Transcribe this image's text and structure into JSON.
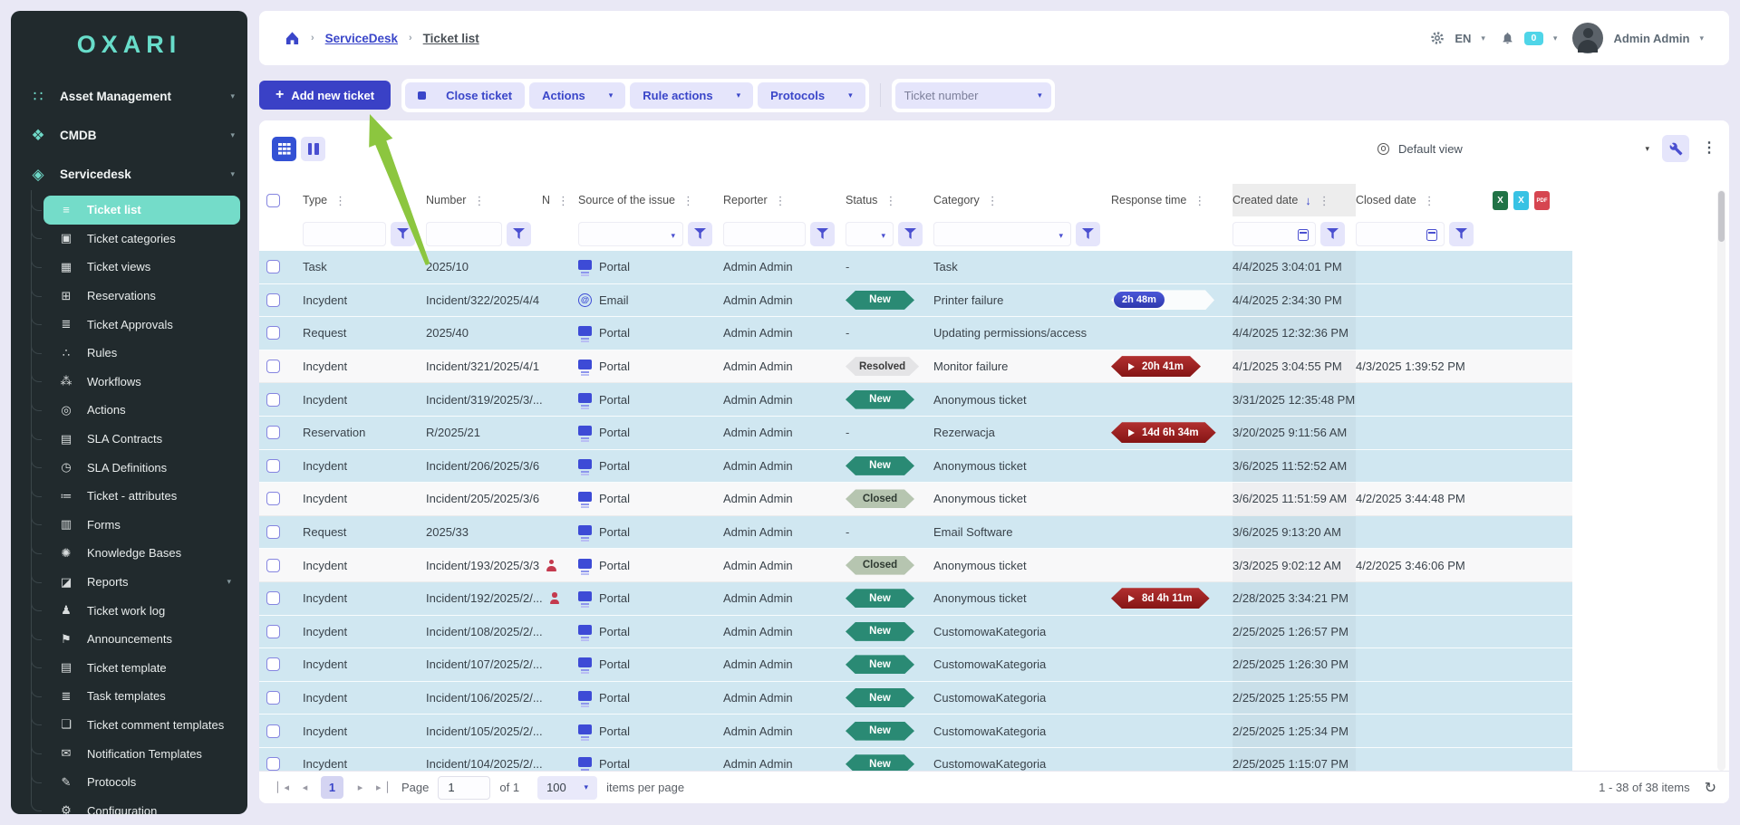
{
  "brand": {
    "logo": "OXARI"
  },
  "sidebar": {
    "sections": [
      {
        "label": "Asset Management",
        "icon": "∷",
        "name": "asset-management",
        "caret": true
      },
      {
        "label": "CMDB",
        "icon": "❖",
        "name": "cmdb",
        "caret": true
      },
      {
        "label": "Servicedesk",
        "icon": "◈",
        "name": "servicedesk",
        "caret": true
      }
    ],
    "items": [
      {
        "label": "Ticket list",
        "icon": "≡",
        "active": true
      },
      {
        "label": "Ticket categories",
        "icon": "▣"
      },
      {
        "label": "Ticket views",
        "icon": "▦"
      },
      {
        "label": "Reservations",
        "icon": "⊞"
      },
      {
        "label": "Ticket Approvals",
        "icon": "≣"
      },
      {
        "label": "Rules",
        "icon": "∴"
      },
      {
        "label": "Workflows",
        "icon": "⁂"
      },
      {
        "label": "Actions",
        "icon": "◎"
      },
      {
        "label": "SLA Contracts",
        "icon": "▤"
      },
      {
        "label": "SLA Definitions",
        "icon": "◷"
      },
      {
        "label": "Ticket - attributes",
        "icon": "≔"
      },
      {
        "label": "Forms",
        "icon": "▥"
      },
      {
        "label": "Knowledge Bases",
        "icon": "✺"
      },
      {
        "label": "Reports",
        "icon": "◪",
        "caret": true
      },
      {
        "label": "Ticket work log",
        "icon": "♟"
      },
      {
        "label": "Announcements",
        "icon": "⚑"
      },
      {
        "label": "Ticket template",
        "icon": "▤"
      },
      {
        "label": "Task templates",
        "icon": "≣"
      },
      {
        "label": "Ticket comment templates",
        "icon": "❏"
      },
      {
        "label": "Notification Templates",
        "icon": "✉"
      },
      {
        "label": "Protocols",
        "icon": "✎"
      },
      {
        "label": "Configuration",
        "icon": "⚙"
      }
    ]
  },
  "topbar": {
    "breadcrumb": [
      "ServiceDesk",
      "Ticket list"
    ],
    "language": "EN",
    "notification_count": "0",
    "user": "Admin Admin"
  },
  "toolbar": {
    "add": "Add new ticket",
    "close": "Close ticket",
    "menus": [
      "Actions",
      "Rule actions",
      "Protocols"
    ],
    "ticket_number": "Ticket number"
  },
  "viewbar": {
    "view_name": "Default view"
  },
  "table": {
    "columns": [
      {
        "label": "",
        "kind": "checkbox"
      },
      {
        "label": "Type",
        "kind": "text"
      },
      {
        "label": "Number",
        "kind": "text"
      },
      {
        "label": "N",
        "kind": "none"
      },
      {
        "label": "Source of the issue",
        "kind": "select"
      },
      {
        "label": "Reporter",
        "kind": "text"
      },
      {
        "label": "Status",
        "kind": "select-narrow"
      },
      {
        "label": "Category",
        "kind": "select"
      },
      {
        "label": "Response time",
        "kind": "none"
      },
      {
        "label": "Created date",
        "kind": "date",
        "sorted": "desc"
      },
      {
        "label": "Closed date",
        "kind": "date"
      }
    ],
    "export": [
      {
        "name": "export-excel",
        "letter": "X",
        "color": "#217346"
      },
      {
        "name": "export-excel-alt",
        "letter": "X",
        "color": "#38c2e4"
      },
      {
        "name": "export-pdf",
        "letter": "PDF",
        "color": "#d64550"
      }
    ],
    "rows": [
      {
        "type": "Task",
        "number": "2025/10",
        "anon": false,
        "source": "Portal",
        "reporter": "Admin Admin",
        "status": "-",
        "category": "Task",
        "response": null,
        "created": "4/4/2025 3:04:01 PM",
        "closed": "",
        "shade": "blue"
      },
      {
        "type": "Incydent",
        "number": "Incident/322/2025/4/4",
        "anon": false,
        "source": "Email",
        "reporter": "Admin Admin",
        "status": "New",
        "category": "Printer failure",
        "response": {
          "style": "progress",
          "label": "2h 48m"
        },
        "created": "4/4/2025 2:34:30 PM",
        "closed": "",
        "shade": "blue"
      },
      {
        "type": "Request",
        "number": "2025/40",
        "anon": false,
        "source": "Portal",
        "reporter": "Admin Admin",
        "status": "-",
        "category": "Updating permissions/access",
        "response": null,
        "created": "4/4/2025 12:32:36 PM",
        "closed": "",
        "shade": "blue"
      },
      {
        "type": "Incydent",
        "number": "Incident/321/2025/4/1",
        "anon": false,
        "source": "Portal",
        "reporter": "Admin Admin",
        "status": "Resolved",
        "category": "Monitor failure",
        "response": {
          "style": "overdue",
          "label": "20h 41m"
        },
        "created": "4/1/2025 3:04:55 PM",
        "closed": "4/3/2025 1:39:52 PM",
        "shade": "white"
      },
      {
        "type": "Incydent",
        "number": "Incident/319/2025/3/...",
        "anon": false,
        "source": "Portal",
        "reporter": "Admin Admin",
        "status": "New",
        "category": "Anonymous ticket",
        "response": null,
        "created": "3/31/2025 12:35:48 PM",
        "closed": "",
        "shade": "blue"
      },
      {
        "type": "Reservation",
        "number": "R/2025/21",
        "anon": false,
        "source": "Portal",
        "reporter": "Admin Admin",
        "status": "-",
        "category": "Rezerwacja",
        "response": {
          "style": "overdue",
          "label": "14d 6h 34m"
        },
        "created": "3/20/2025 9:11:56 AM",
        "closed": "",
        "shade": "blue"
      },
      {
        "type": "Incydent",
        "number": "Incident/206/2025/3/6",
        "anon": false,
        "source": "Portal",
        "reporter": "Admin Admin",
        "status": "New",
        "category": "Anonymous ticket",
        "response": null,
        "created": "3/6/2025 11:52:52 AM",
        "closed": "",
        "shade": "blue"
      },
      {
        "type": "Incydent",
        "number": "Incident/205/2025/3/6",
        "anon": false,
        "source": "Portal",
        "reporter": "Admin Admin",
        "status": "Closed",
        "category": "Anonymous ticket",
        "response": null,
        "created": "3/6/2025 11:51:59 AM",
        "closed": "4/2/2025 3:44:48 PM",
        "shade": "white"
      },
      {
        "type": "Request",
        "number": "2025/33",
        "anon": false,
        "source": "Portal",
        "reporter": "Admin Admin",
        "status": "-",
        "category": "Email Software",
        "response": null,
        "created": "3/6/2025 9:13:20 AM",
        "closed": "",
        "shade": "blue"
      },
      {
        "type": "Incydent",
        "number": "Incident/193/2025/3/3",
        "anon": true,
        "source": "Portal",
        "reporter": "Admin Admin",
        "status": "Closed",
        "category": "Anonymous ticket",
        "response": null,
        "created": "3/3/2025 9:02:12 AM",
        "closed": "4/2/2025 3:46:06 PM",
        "shade": "white"
      },
      {
        "type": "Incydent",
        "number": "Incident/192/2025/2/...",
        "anon": true,
        "source": "Portal",
        "reporter": "Admin Admin",
        "status": "New",
        "category": "Anonymous ticket",
        "response": {
          "style": "overdue",
          "label": "8d 4h 11m"
        },
        "created": "2/28/2025 3:34:21 PM",
        "closed": "",
        "shade": "blue"
      },
      {
        "type": "Incydent",
        "number": "Incident/108/2025/2/...",
        "anon": false,
        "source": "Portal",
        "reporter": "Admin Admin",
        "status": "New",
        "category": "CustomowaKategoria",
        "response": null,
        "created": "2/25/2025 1:26:57 PM",
        "closed": "",
        "shade": "blue"
      },
      {
        "type": "Incydent",
        "number": "Incident/107/2025/2/...",
        "anon": false,
        "source": "Portal",
        "reporter": "Admin Admin",
        "status": "New",
        "category": "CustomowaKategoria",
        "response": null,
        "created": "2/25/2025 1:26:30 PM",
        "closed": "",
        "shade": "blue"
      },
      {
        "type": "Incydent",
        "number": "Incident/106/2025/2/...",
        "anon": false,
        "source": "Portal",
        "reporter": "Admin Admin",
        "status": "New",
        "category": "CustomowaKategoria",
        "response": null,
        "created": "2/25/2025 1:25:55 PM",
        "closed": "",
        "shade": "blue"
      },
      {
        "type": "Incydent",
        "number": "Incident/105/2025/2/...",
        "anon": false,
        "source": "Portal",
        "reporter": "Admin Admin",
        "status": "New",
        "category": "CustomowaKategoria",
        "response": null,
        "created": "2/25/2025 1:25:34 PM",
        "closed": "",
        "shade": "blue"
      },
      {
        "type": "Incydent",
        "number": "Incident/104/2025/2/...",
        "anon": false,
        "source": "Portal",
        "reporter": "Admin Admin",
        "status": "New",
        "category": "CustomowaKategoria",
        "response": null,
        "created": "2/25/2025 1:15:07 PM",
        "closed": "",
        "shade": "blue"
      }
    ]
  },
  "footer": {
    "page_label": "Page",
    "page_value": "1",
    "of_label": "of 1",
    "page_size": "100",
    "per_page_label": "items per page",
    "range": "1 - 38 of 38 items"
  },
  "colors": {
    "accent_indigo": "#3a41c6",
    "teal": "#6fdcc9",
    "row_blue": "#d0e7f1",
    "badge_new": "#2a8a74",
    "badge_closed": "#b6c5b0",
    "badge_resolved": "#e4e4e6",
    "overdue_red": "#9e1f1f",
    "progress_blue": "#3a49c8",
    "notification_cyan": "#4fd5e8",
    "annotation_green": "#8cc63f",
    "sidebar_bg": "#212a2d"
  }
}
